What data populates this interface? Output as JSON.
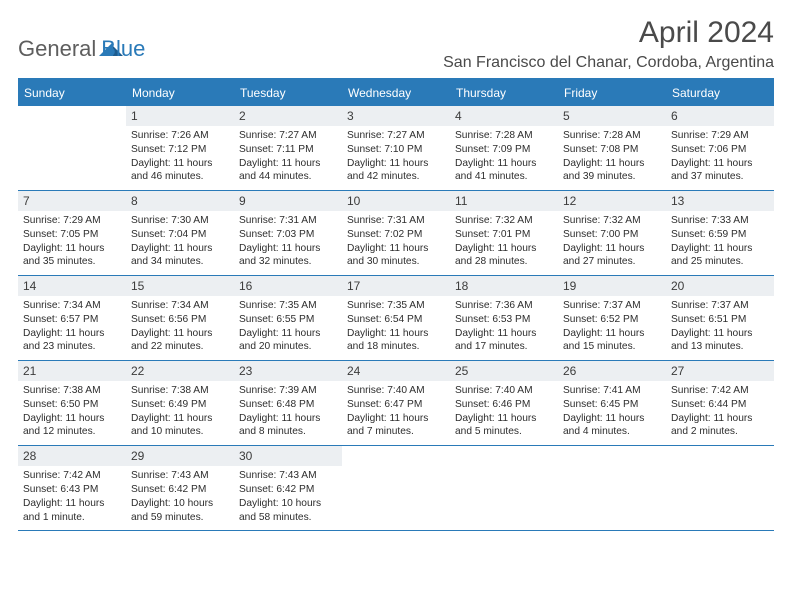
{
  "logo": {
    "general": "General",
    "blue": "Blue"
  },
  "title": "April 2024",
  "location": "San Francisco del Chanar, Cordoba, Argentina",
  "colors": {
    "accent": "#2a7ab8",
    "header_text": "#ffffff",
    "body_text": "#2d2d2d",
    "daynum_bg": "#eceff2",
    "logo_gray": "#5e5e5e",
    "background": "#ffffff"
  },
  "daynames": [
    "Sunday",
    "Monday",
    "Tuesday",
    "Wednesday",
    "Thursday",
    "Friday",
    "Saturday"
  ],
  "weeks": [
    [
      null,
      {
        "n": "1",
        "sr": "Sunrise: 7:26 AM",
        "ss": "Sunset: 7:12 PM",
        "dl1": "Daylight: 11 hours",
        "dl2": "and 46 minutes."
      },
      {
        "n": "2",
        "sr": "Sunrise: 7:27 AM",
        "ss": "Sunset: 7:11 PM",
        "dl1": "Daylight: 11 hours",
        "dl2": "and 44 minutes."
      },
      {
        "n": "3",
        "sr": "Sunrise: 7:27 AM",
        "ss": "Sunset: 7:10 PM",
        "dl1": "Daylight: 11 hours",
        "dl2": "and 42 minutes."
      },
      {
        "n": "4",
        "sr": "Sunrise: 7:28 AM",
        "ss": "Sunset: 7:09 PM",
        "dl1": "Daylight: 11 hours",
        "dl2": "and 41 minutes."
      },
      {
        "n": "5",
        "sr": "Sunrise: 7:28 AM",
        "ss": "Sunset: 7:08 PM",
        "dl1": "Daylight: 11 hours",
        "dl2": "and 39 minutes."
      },
      {
        "n": "6",
        "sr": "Sunrise: 7:29 AM",
        "ss": "Sunset: 7:06 PM",
        "dl1": "Daylight: 11 hours",
        "dl2": "and 37 minutes."
      }
    ],
    [
      {
        "n": "7",
        "sr": "Sunrise: 7:29 AM",
        "ss": "Sunset: 7:05 PM",
        "dl1": "Daylight: 11 hours",
        "dl2": "and 35 minutes."
      },
      {
        "n": "8",
        "sr": "Sunrise: 7:30 AM",
        "ss": "Sunset: 7:04 PM",
        "dl1": "Daylight: 11 hours",
        "dl2": "and 34 minutes."
      },
      {
        "n": "9",
        "sr": "Sunrise: 7:31 AM",
        "ss": "Sunset: 7:03 PM",
        "dl1": "Daylight: 11 hours",
        "dl2": "and 32 minutes."
      },
      {
        "n": "10",
        "sr": "Sunrise: 7:31 AM",
        "ss": "Sunset: 7:02 PM",
        "dl1": "Daylight: 11 hours",
        "dl2": "and 30 minutes."
      },
      {
        "n": "11",
        "sr": "Sunrise: 7:32 AM",
        "ss": "Sunset: 7:01 PM",
        "dl1": "Daylight: 11 hours",
        "dl2": "and 28 minutes."
      },
      {
        "n": "12",
        "sr": "Sunrise: 7:32 AM",
        "ss": "Sunset: 7:00 PM",
        "dl1": "Daylight: 11 hours",
        "dl2": "and 27 minutes."
      },
      {
        "n": "13",
        "sr": "Sunrise: 7:33 AM",
        "ss": "Sunset: 6:59 PM",
        "dl1": "Daylight: 11 hours",
        "dl2": "and 25 minutes."
      }
    ],
    [
      {
        "n": "14",
        "sr": "Sunrise: 7:34 AM",
        "ss": "Sunset: 6:57 PM",
        "dl1": "Daylight: 11 hours",
        "dl2": "and 23 minutes."
      },
      {
        "n": "15",
        "sr": "Sunrise: 7:34 AM",
        "ss": "Sunset: 6:56 PM",
        "dl1": "Daylight: 11 hours",
        "dl2": "and 22 minutes."
      },
      {
        "n": "16",
        "sr": "Sunrise: 7:35 AM",
        "ss": "Sunset: 6:55 PM",
        "dl1": "Daylight: 11 hours",
        "dl2": "and 20 minutes."
      },
      {
        "n": "17",
        "sr": "Sunrise: 7:35 AM",
        "ss": "Sunset: 6:54 PM",
        "dl1": "Daylight: 11 hours",
        "dl2": "and 18 minutes."
      },
      {
        "n": "18",
        "sr": "Sunrise: 7:36 AM",
        "ss": "Sunset: 6:53 PM",
        "dl1": "Daylight: 11 hours",
        "dl2": "and 17 minutes."
      },
      {
        "n": "19",
        "sr": "Sunrise: 7:37 AM",
        "ss": "Sunset: 6:52 PM",
        "dl1": "Daylight: 11 hours",
        "dl2": "and 15 minutes."
      },
      {
        "n": "20",
        "sr": "Sunrise: 7:37 AM",
        "ss": "Sunset: 6:51 PM",
        "dl1": "Daylight: 11 hours",
        "dl2": "and 13 minutes."
      }
    ],
    [
      {
        "n": "21",
        "sr": "Sunrise: 7:38 AM",
        "ss": "Sunset: 6:50 PM",
        "dl1": "Daylight: 11 hours",
        "dl2": "and 12 minutes."
      },
      {
        "n": "22",
        "sr": "Sunrise: 7:38 AM",
        "ss": "Sunset: 6:49 PM",
        "dl1": "Daylight: 11 hours",
        "dl2": "and 10 minutes."
      },
      {
        "n": "23",
        "sr": "Sunrise: 7:39 AM",
        "ss": "Sunset: 6:48 PM",
        "dl1": "Daylight: 11 hours",
        "dl2": "and 8 minutes."
      },
      {
        "n": "24",
        "sr": "Sunrise: 7:40 AM",
        "ss": "Sunset: 6:47 PM",
        "dl1": "Daylight: 11 hours",
        "dl2": "and 7 minutes."
      },
      {
        "n": "25",
        "sr": "Sunrise: 7:40 AM",
        "ss": "Sunset: 6:46 PM",
        "dl1": "Daylight: 11 hours",
        "dl2": "and 5 minutes."
      },
      {
        "n": "26",
        "sr": "Sunrise: 7:41 AM",
        "ss": "Sunset: 6:45 PM",
        "dl1": "Daylight: 11 hours",
        "dl2": "and 4 minutes."
      },
      {
        "n": "27",
        "sr": "Sunrise: 7:42 AM",
        "ss": "Sunset: 6:44 PM",
        "dl1": "Daylight: 11 hours",
        "dl2": "and 2 minutes."
      }
    ],
    [
      {
        "n": "28",
        "sr": "Sunrise: 7:42 AM",
        "ss": "Sunset: 6:43 PM",
        "dl1": "Daylight: 11 hours",
        "dl2": "and 1 minute."
      },
      {
        "n": "29",
        "sr": "Sunrise: 7:43 AM",
        "ss": "Sunset: 6:42 PM",
        "dl1": "Daylight: 10 hours",
        "dl2": "and 59 minutes."
      },
      {
        "n": "30",
        "sr": "Sunrise: 7:43 AM",
        "ss": "Sunset: 6:42 PM",
        "dl1": "Daylight: 10 hours",
        "dl2": "and 58 minutes."
      },
      null,
      null,
      null,
      null
    ]
  ]
}
